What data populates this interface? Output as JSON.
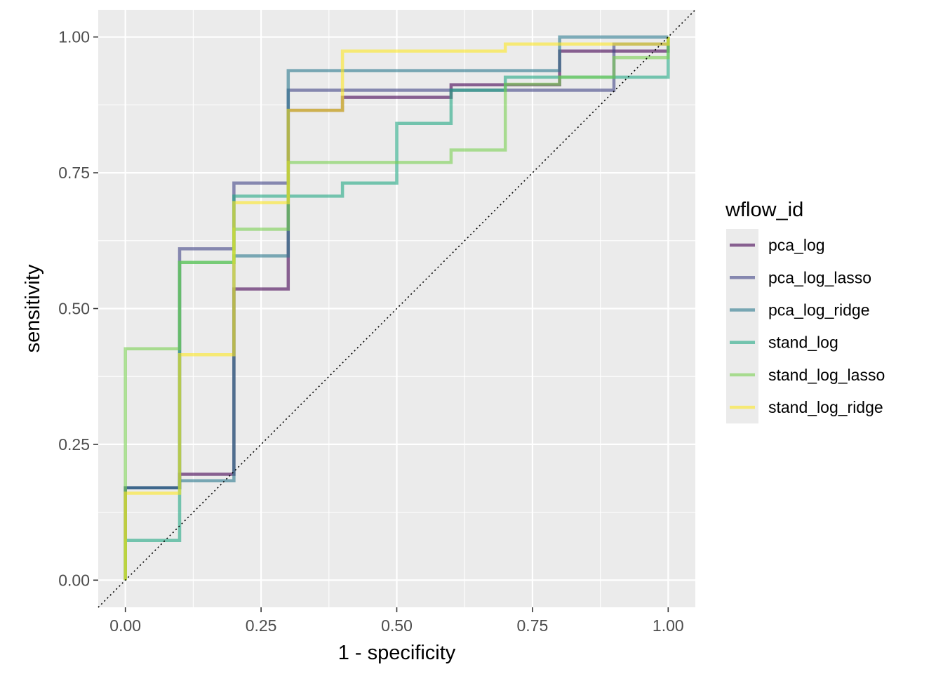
{
  "chart_data": {
    "type": "line",
    "subtype": "roc-step",
    "title": "",
    "xlabel": "1 - specificity",
    "ylabel": "sensitivity",
    "xlim": [
      -0.05,
      1.05
    ],
    "ylim": [
      -0.05,
      1.05
    ],
    "xticks": [
      0,
      0.25,
      0.5,
      0.75,
      1
    ],
    "yticks": [
      0,
      0.25,
      0.5,
      0.75,
      1
    ],
    "xtick_labels": [
      "0.00",
      "0.25",
      "0.50",
      "0.75",
      "1.00"
    ],
    "ytick_labels": [
      "0.00",
      "0.25",
      "0.50",
      "0.75",
      "1.00"
    ],
    "grid": true,
    "reference_line": {
      "type": "diagonal",
      "style": "dotted",
      "from": [
        0,
        0
      ],
      "to": [
        1,
        1
      ]
    },
    "legend": {
      "title": "wflow_id",
      "position": "right"
    },
    "series": [
      {
        "name": "pca_log",
        "color": "#440154",
        "x": [
          0,
          0,
          0.1,
          0.1,
          0.2,
          0.2,
          0.3,
          0.3,
          0.4,
          0.4,
          0.6,
          0.6,
          0.8,
          0.8,
          1.0,
          1.0
        ],
        "y": [
          0,
          0.17,
          0.17,
          0.195,
          0.195,
          0.536,
          0.536,
          0.865,
          0.865,
          0.889,
          0.889,
          0.912,
          0.912,
          0.974,
          0.974,
          1.0
        ]
      },
      {
        "name": "pca_log_lasso",
        "color": "#414487",
        "x": [
          0,
          0,
          0.1,
          0.1,
          0.2,
          0.2,
          0.3,
          0.3,
          0.9,
          0.9,
          1.0,
          1.0
        ],
        "y": [
          0,
          0.17,
          0.17,
          0.61,
          0.61,
          0.731,
          0.731,
          0.902,
          0.902,
          0.987,
          0.987,
          1.0
        ]
      },
      {
        "name": "pca_log_ridge",
        "color": "#2A788E",
        "x": [
          0,
          0,
          0.1,
          0.1,
          0.2,
          0.2,
          0.3,
          0.3,
          0.8,
          0.8,
          1.0
        ],
        "y": [
          0,
          0.17,
          0.17,
          0.183,
          0.183,
          0.597,
          0.597,
          0.938,
          0.938,
          1.0,
          1.0
        ]
      },
      {
        "name": "stand_log",
        "color": "#22A884",
        "x": [
          0,
          0,
          0.1,
          0.1,
          0.2,
          0.2,
          0.4,
          0.4,
          0.5,
          0.5,
          0.6,
          0.6,
          0.7,
          0.7,
          1.0,
          1.0
        ],
        "y": [
          0,
          0.073,
          0.073,
          0.585,
          0.585,
          0.707,
          0.707,
          0.731,
          0.731,
          0.841,
          0.841,
          0.902,
          0.902,
          0.926,
          0.926,
          1.0
        ]
      },
      {
        "name": "stand_log_lasso",
        "color": "#7AD151",
        "x": [
          0,
          0,
          0.1,
          0.1,
          0.2,
          0.2,
          0.3,
          0.3,
          0.6,
          0.6,
          0.7,
          0.7,
          0.8,
          0.8,
          0.9,
          0.9,
          1.0,
          1.0
        ],
        "y": [
          0,
          0.426,
          0.426,
          0.585,
          0.585,
          0.646,
          0.646,
          0.769,
          0.769,
          0.792,
          0.792,
          0.913,
          0.913,
          0.926,
          0.926,
          0.962,
          0.962,
          1.0
        ]
      },
      {
        "name": "stand_log_ridge",
        "color": "#FDE725",
        "x": [
          0,
          0,
          0.1,
          0.1,
          0.2,
          0.2,
          0.3,
          0.3,
          0.4,
          0.4,
          0.7,
          0.7,
          1.0,
          1.0
        ],
        "y": [
          0,
          0.16,
          0.16,
          0.415,
          0.415,
          0.695,
          0.695,
          0.865,
          0.865,
          0.974,
          0.974,
          0.987,
          0.987,
          1.0
        ]
      }
    ]
  }
}
